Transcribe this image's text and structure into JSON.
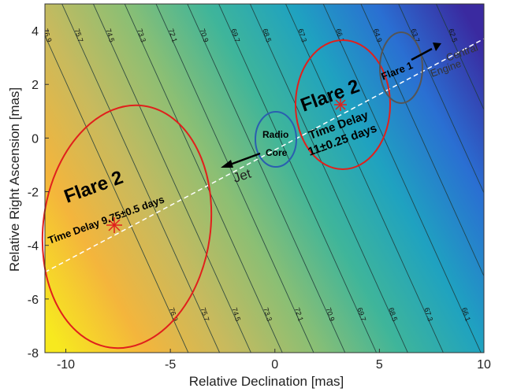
{
  "chart_data": {
    "type": "heatmap",
    "title": "",
    "xlabel": "Relative Declination [mas]",
    "ylabel": "Relative Right Ascension [mas]",
    "xlim": [
      -11,
      10
    ],
    "ylim": [
      -8,
      5
    ],
    "x_ticks": [
      "-10",
      "-5",
      "0",
      "5",
      "10"
    ],
    "y_ticks": [
      "-8",
      "-6",
      "-4",
      "-2",
      "0",
      "2",
      "4"
    ],
    "colormap": [
      "#f7e91f",
      "#f4b53c",
      "#c7ba5e",
      "#8bbf74",
      "#3fb59a",
      "#1fa2c0",
      "#2a6fd2",
      "#3a2aa0"
    ],
    "contour_levels": [
      "76.9",
      "75.7",
      "74.5",
      "73.3",
      "72.1",
      "70.9",
      "69.7",
      "68.5",
      "67.3",
      "66.1",
      "64.9",
      "63.7",
      "62.5"
    ],
    "jet_axis": {
      "from": [
        -11,
        -5
      ],
      "to": [
        10,
        3.7
      ],
      "style": "dashed",
      "color": "#ffffff"
    },
    "arrows": [
      {
        "label": "Jet",
        "from": [
          -0.5,
          -1.4
        ],
        "to": [
          -2.5,
          -2.2
        ]
      },
      {
        "label": "Central Engine",
        "from": [
          6.8,
          2.0
        ],
        "to": [
          8.8,
          2.9
        ]
      }
    ],
    "regions": [
      {
        "label": "Flare 2",
        "sublabel": "Time Delay 9.75±0.5 days",
        "center": [
          -7.5,
          -3.5
        ],
        "color": "#e0201c",
        "marker": [
          -7.6,
          -3.2
        ]
      },
      {
        "label": "Flare 2",
        "sublabel": "Time Delay 11±0.25 days",
        "center": [
          3.0,
          1.1
        ],
        "color": "#e0201c",
        "marker": [
          3.2,
          1.3
        ]
      },
      {
        "label": "Flare 1",
        "center": [
          5.9,
          2.0
        ],
        "color": "#555555"
      },
      {
        "label": "Radio Core",
        "center": [
          -0.2,
          -0.3
        ],
        "color": "#2a5fb0"
      }
    ],
    "annotations": {
      "flare2_left": "Flare 2",
      "delay_left": "Time Delay 9.75±0.5 days",
      "flare2_right": "Flare 2",
      "delay_right_1": "Time Delay",
      "delay_right_2": "11±0.25 days",
      "flare1": "Flare 1",
      "radio": "Radio",
      "core": "Core",
      "jet": "Jet",
      "central": "Central",
      "engine": "Engine"
    },
    "grid": false,
    "legend": "none"
  }
}
